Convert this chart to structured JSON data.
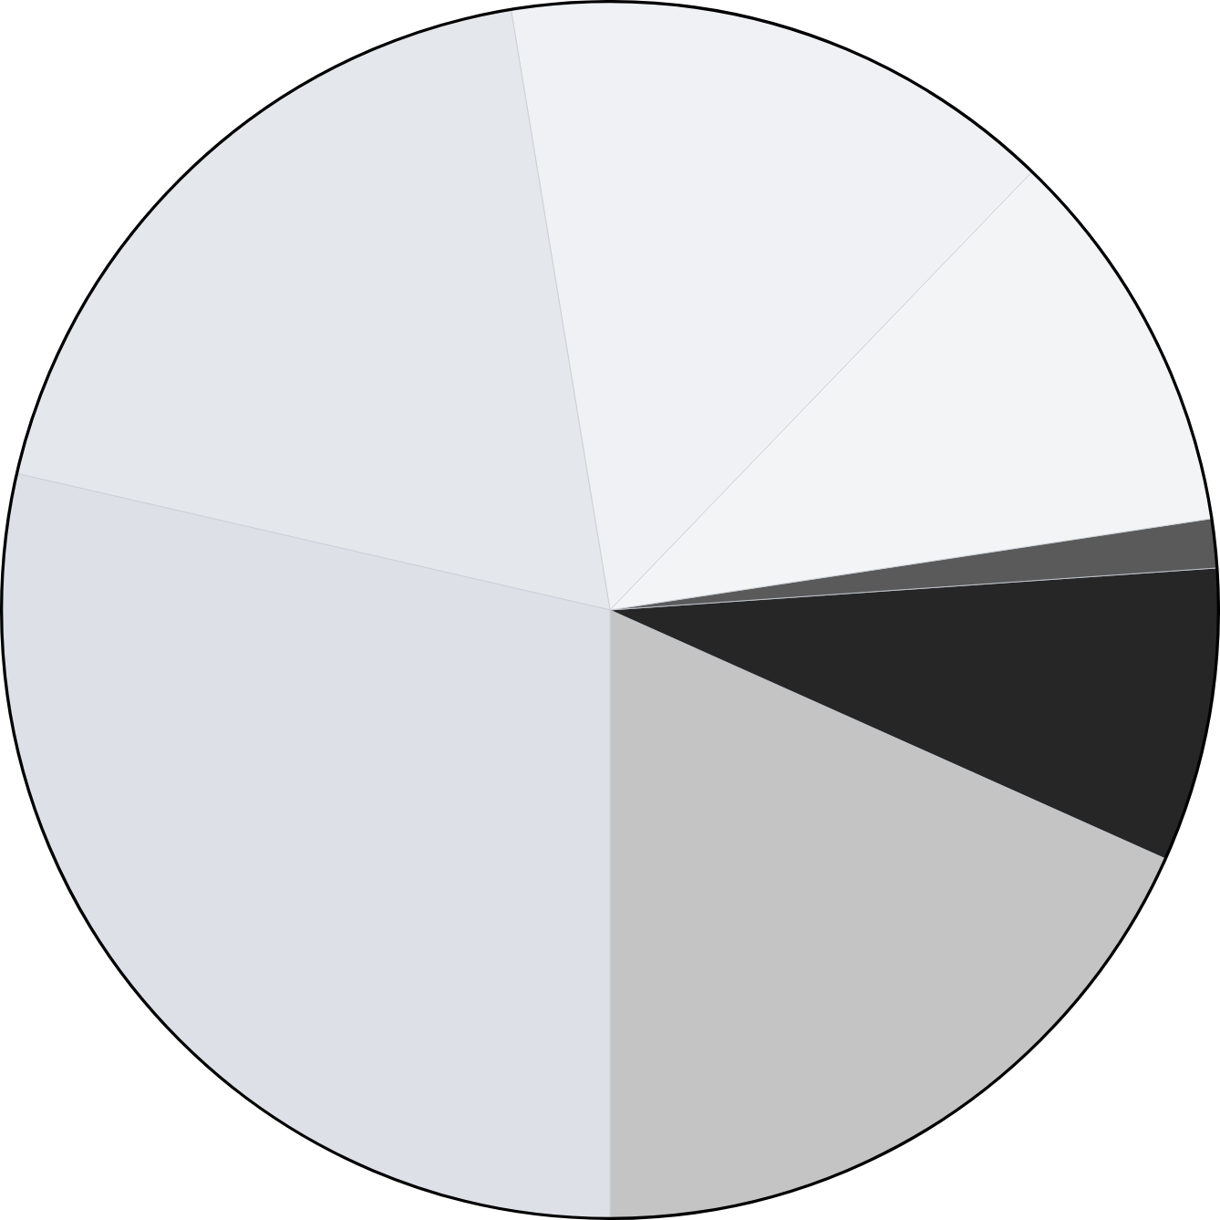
{
  "chart_data": {
    "type": "pie",
    "categories": [
      null,
      null,
      null,
      null,
      null,
      null,
      null
    ],
    "values": [
      18.3,
      7.8,
      1.3,
      10.4,
      14.8,
      18.8,
      28.6
    ],
    "colors": [
      "#c4c4c4",
      "#262626",
      "#5a5a5a",
      "#f3f4f6",
      "#eff1f4",
      "#e4e7ec",
      "#dde1e7"
    ]
  }
}
